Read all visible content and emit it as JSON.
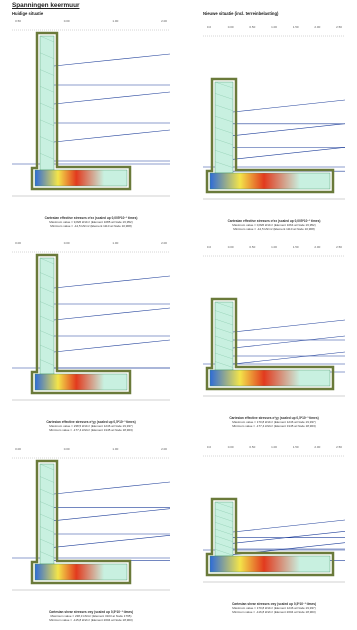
{
  "page": {
    "title": "Spanningen keermuur",
    "left_heading": "Huidige situatie",
    "right_heading": "Nieuwe situatie (incl. terreinbelasting)"
  },
  "panels": [
    {
      "column": "left",
      "row": 1,
      "ticks": [
        "0.50",
        "0.00",
        "1.00",
        "2.00"
      ],
      "caption_title": "Cartesian effective stresses σ'xx (scaled up 0,005*10⁻³ times)",
      "caption_max": "Maximum value = 9,826 kN/m² (Element 1085 at Node 16,952)",
      "caption_min": "Minimum value = -12,5 kN/m² (Element 1110 at Node 10,968)"
    },
    {
      "column": "right",
      "row": 1,
      "ticks": [
        "0.0",
        "0.00",
        "0.50",
        "1.00",
        "1.50",
        "2.00",
        "2.50"
      ],
      "caption_title": "Cartesian effective stresses σ'xx (scaled up 0,005*10⁻³ times)",
      "caption_max": "Maximum value = 0,826 kN/m² (Element 1064 at Node 16,952)",
      "caption_min": "Minimum value = -12,5 kN/m² (Element 1110 at Node 10,968)"
    },
    {
      "column": "left",
      "row": 2,
      "ticks": [
        "0.00",
        "0.00",
        "1.00",
        "2.00"
      ],
      "caption_title": "Cartesian effective stresses σ'yy (scaled up 0,5*10⁻³ times)",
      "caption_max": "Maximum value = 238,5 kN/m² (Element 1246 at Node 19,937)",
      "caption_min": "Minimum value = -177,4 kN/m² (Element 3145 at Node 18,903)"
    },
    {
      "column": "right",
      "row": 2,
      "ticks": [
        "0.0",
        "0.00",
        "0.50",
        "1.00",
        "1.50",
        "2.00",
        "2.50"
      ],
      "caption_title": "Cartesian effective stresses σ'yy (scaled up 0,5*10⁻³ times)",
      "caption_max": "Maximum value = 170,8 kN/m² (Element 1246 at Node 19,937)",
      "caption_min": "Minimum value = -177,4 kN/m² (Element 3145 at Node 18,903)"
    },
    {
      "column": "left",
      "row": 3,
      "ticks": [
        "0.00",
        "0.00",
        "1.00",
        "2.00"
      ],
      "caption_title": "Cartesian shear stresses σxy (scaled up 0,5*10⁻³ times)",
      "caption_max": "Maximum value = 238,3 kN/m² (Element 3103 at Node 1795)",
      "caption_min": "Minimum value = -115,8 kN/m² (Element 2004 at Node 18,903)"
    },
    {
      "column": "right",
      "row": 3,
      "ticks": [
        "0.0",
        "0.00",
        "0.50",
        "1.00",
        "1.50",
        "2.00",
        "2.50"
      ],
      "caption_title": "Cartesian shear stresses σxy (scaled up 0,5*10⁻³ times)",
      "caption_max": "Maximum value = 170,8 kN/m² (Element 1246 at Node 19,937)",
      "caption_min": "Minimum value = -116,8 kN/m² (Element 2004 at Node 18,903)"
    }
  ],
  "colors": {
    "wall_fill": "#c8f0e0",
    "outline": "#6a7a3a",
    "soil_line": "#1f3f9a",
    "hot_low": "#2e6bd8",
    "hot_high": "#e23a1e",
    "ramp_mid": "#f3e44a"
  }
}
